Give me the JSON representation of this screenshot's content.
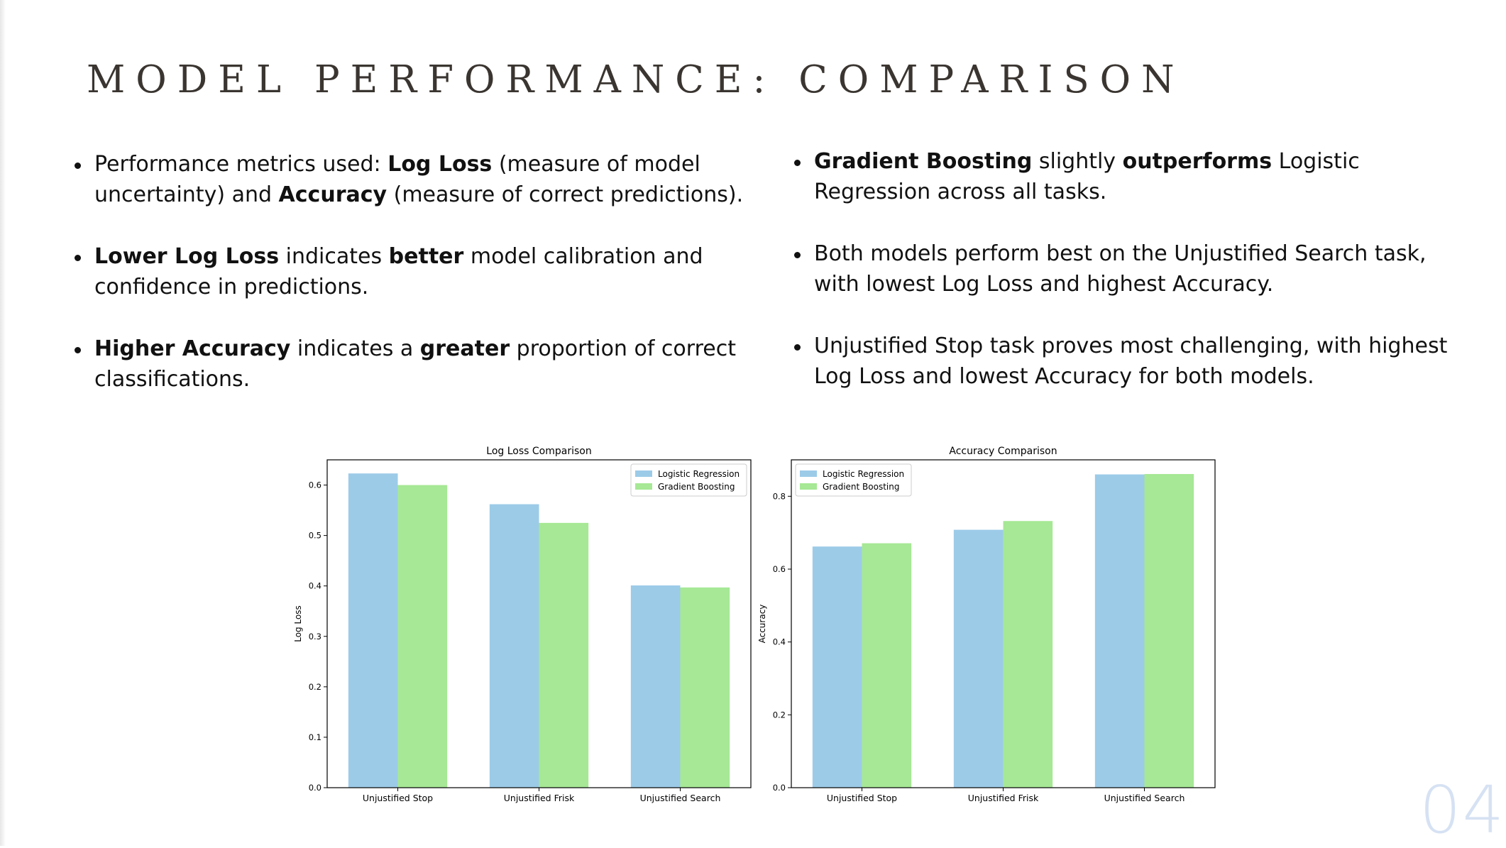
{
  "slide": {
    "title": "MODEL PERFORMANCE: COMPARISON",
    "page_number": "04"
  },
  "left_bullets": [
    [
      {
        "t": "Performance metrics used: ",
        "b": false
      },
      {
        "t": "Log Loss",
        "b": true
      },
      {
        "t": " (measure of model uncertainty) and ",
        "b": false
      },
      {
        "t": "Accuracy",
        "b": true
      },
      {
        "t": " (measure of correct predictions).",
        "b": false
      }
    ],
    [
      {
        "t": "Lower Log Loss",
        "b": true
      },
      {
        "t": " indicates ",
        "b": false
      },
      {
        "t": "better",
        "b": true
      },
      {
        "t": " model calibration and confidence in predictions.",
        "b": false
      }
    ],
    [
      {
        "t": "Higher Accuracy",
        "b": true
      },
      {
        "t": " indicates a ",
        "b": false
      },
      {
        "t": "greater",
        "b": true
      },
      {
        "t": " proportion of correct classifications.",
        "b": false
      }
    ]
  ],
  "right_bullets": [
    [
      {
        "t": "Gradient Boosting",
        "b": true
      },
      {
        "t": " slightly ",
        "b": false
      },
      {
        "t": "outperforms",
        "b": true
      },
      {
        "t": " Logistic Regression across all tasks.",
        "b": false
      }
    ],
    [
      {
        "t": "Both models perform best on the Unjustified Search task, with lowest Log Loss and highest Accuracy.",
        "b": false
      }
    ],
    [
      {
        "t": "Unjustified Stop task proves most challenging, with highest Log Loss and lowest Accuracy for both models.",
        "b": false
      }
    ]
  ],
  "colors": {
    "logistic_regression": "#9ccbe8",
    "gradient_boosting": "#a6e895",
    "axis": "#000000",
    "page_number": "#d6e2f3"
  },
  "chart_data": [
    {
      "type": "bar",
      "title": "Log Loss Comparison",
      "xlabel": "",
      "ylabel": "Log Loss",
      "categories": [
        "Unjustified Stop",
        "Unjustified Frisk",
        "Unjustified Search"
      ],
      "series": [
        {
          "name": "Logistic Regression",
          "values": [
            0.623,
            0.562,
            0.401
          ]
        },
        {
          "name": "Gradient Boosting",
          "values": [
            0.6,
            0.525,
            0.397
          ]
        }
      ],
      "ylim": [
        0,
        0.65
      ],
      "yticks": [
        0.0,
        0.1,
        0.2,
        0.3,
        0.4,
        0.5,
        0.6
      ],
      "ytick_labels": [
        "0.0",
        "0.1",
        "0.2",
        "0.3",
        "0.4",
        "0.5",
        "0.6"
      ],
      "legend": "top-right",
      "grid": false
    },
    {
      "type": "bar",
      "title": "Accuracy Comparison",
      "xlabel": "",
      "ylabel": "Accuracy",
      "categories": [
        "Unjustified Stop",
        "Unjustified Frisk",
        "Unjustified Search"
      ],
      "series": [
        {
          "name": "Logistic Regression",
          "values": [
            0.662,
            0.708,
            0.86
          ]
        },
        {
          "name": "Gradient Boosting",
          "values": [
            0.671,
            0.732,
            0.861
          ]
        }
      ],
      "ylim": [
        0,
        0.9
      ],
      "yticks": [
        0.0,
        0.2,
        0.4,
        0.6,
        0.8
      ],
      "ytick_labels": [
        "0.0",
        "0.2",
        "0.4",
        "0.6",
        "0.8"
      ],
      "legend": "top-left",
      "grid": false
    }
  ]
}
